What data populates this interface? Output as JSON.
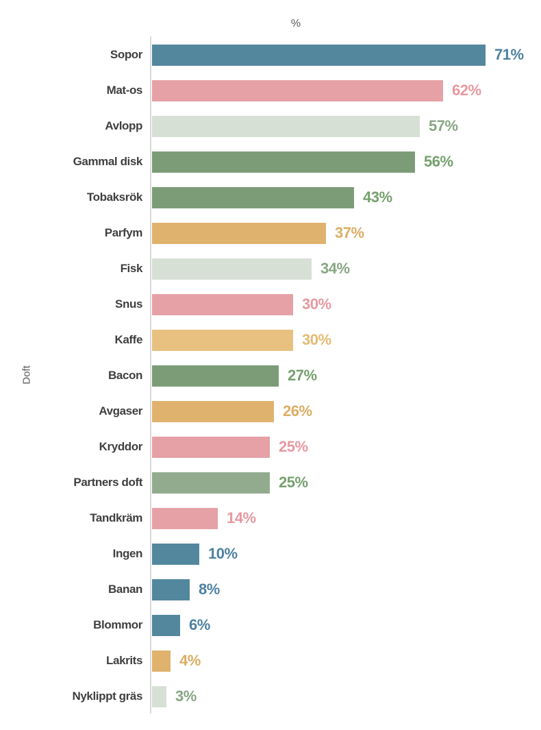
{
  "chart_data": {
    "type": "bar",
    "orientation": "horizontal",
    "value_axis_title": "%",
    "category_axis_title": "Doft",
    "xlim": [
      0,
      80
    ],
    "grid": false,
    "legend": "none",
    "categories": [
      "Sopor",
      "Mat-os",
      "Avlopp",
      "Gammal disk",
      "Tobaksrök",
      "Parfym",
      "Fisk",
      "Snus",
      "Kaffe",
      "Bacon",
      "Avgaser",
      "Kryddor",
      "Partners doft",
      "Tandkräm",
      "Ingen",
      "Banan",
      "Blommor",
      "Lakrits",
      "Nyklippt gräs"
    ],
    "values": [
      71,
      62,
      57,
      56,
      43,
      37,
      34,
      30,
      30,
      27,
      26,
      25,
      25,
      14,
      10,
      8,
      6,
      4,
      3
    ],
    "bars": [
      {
        "category": "Sopor",
        "value": 71,
        "data_label": "71%",
        "color_key": "blue"
      },
      {
        "category": "Mat-os",
        "value": 62,
        "data_label": "62%",
        "color_key": "pink"
      },
      {
        "category": "Avlopp",
        "value": 57,
        "data_label": "57%",
        "color_key": "lightgreen"
      },
      {
        "category": "Gammal disk",
        "value": 56,
        "data_label": "56%",
        "color_key": "green"
      },
      {
        "category": "Tobaksrök",
        "value": 43,
        "data_label": "43%",
        "color_key": "green"
      },
      {
        "category": "Parfym",
        "value": 37,
        "data_label": "37%",
        "color_key": "gold"
      },
      {
        "category": "Fisk",
        "value": 34,
        "data_label": "34%",
        "color_key": "lightgreen"
      },
      {
        "category": "Snus",
        "value": 30,
        "data_label": "30%",
        "color_key": "pink"
      },
      {
        "category": "Kaffe",
        "value": 30,
        "data_label": "30%",
        "color_key": "goldlight"
      },
      {
        "category": "Bacon",
        "value": 27,
        "data_label": "27%",
        "color_key": "green"
      },
      {
        "category": "Avgaser",
        "value": 26,
        "data_label": "26%",
        "color_key": "gold"
      },
      {
        "category": "Kryddor",
        "value": 25,
        "data_label": "25%",
        "color_key": "pink"
      },
      {
        "category": "Partners doft",
        "value": 25,
        "data_label": "25%",
        "color_key": "sage"
      },
      {
        "category": "Tandkräm",
        "value": 14,
        "data_label": "14%",
        "color_key": "pink"
      },
      {
        "category": "Ingen",
        "value": 10,
        "data_label": "10%",
        "color_key": "blue"
      },
      {
        "category": "Banan",
        "value": 8,
        "data_label": "8%",
        "color_key": "blue"
      },
      {
        "category": "Blommor",
        "value": 6,
        "data_label": "6%",
        "color_key": "blue"
      },
      {
        "category": "Lakrits",
        "value": 4,
        "data_label": "4%",
        "color_key": "gold"
      },
      {
        "category": "Nyklippt gräs",
        "value": 3,
        "data_label": "3%",
        "color_key": "lightgreen"
      }
    ],
    "palette": {
      "blue": {
        "bar": "#53879e",
        "label": "#4d81a0"
      },
      "pink": {
        "bar": "#e5a1a6",
        "label": "#e7989f"
      },
      "lightgreen": {
        "bar": "#d7e0d5",
        "label": "#88a584"
      },
      "green": {
        "bar": "#7c9c78",
        "label": "#75a06d"
      },
      "sage": {
        "bar": "#92ab8f",
        "label": "#75a06d"
      },
      "gold": {
        "bar": "#dfb26d",
        "label": "#dcad63"
      },
      "goldlight": {
        "bar": "#e8c180",
        "label": "#e5ba74"
      }
    },
    "axis_line_color": "#d9d9d9",
    "category_label_color": "#3f3f3f",
    "axis_title_color": "#595959"
  }
}
